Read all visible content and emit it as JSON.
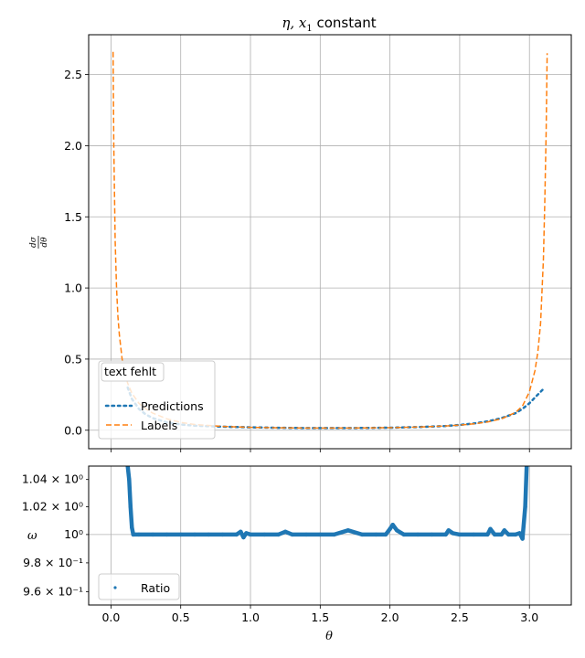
{
  "chart_data": [
    {
      "type": "line",
      "title": "η, x₁ constant",
      "xlabel": "",
      "ylabel": "dσ/dθ",
      "xlim": [
        -0.16,
        3.3
      ],
      "ylim": [
        -0.13,
        2.78
      ],
      "xticks": [
        0.0,
        0.5,
        1.0,
        1.5,
        2.0,
        2.5,
        3.0
      ],
      "yticks": [
        0.0,
        0.5,
        1.0,
        1.5,
        2.0,
        2.5
      ],
      "ytick_labels": [
        "0.0",
        "0.5",
        "1.0",
        "1.5",
        "2.0",
        "2.5"
      ],
      "grid": true,
      "legend": {
        "title": "text fehlt",
        "placement": "lower-left"
      },
      "series": [
        {
          "name": "Predictions",
          "style": "dotted",
          "color": "#1f77b4",
          "x": [
            0.12,
            0.15,
            0.2,
            0.25,
            0.3,
            0.4,
            0.5,
            0.6,
            0.8,
            1.0,
            1.2,
            1.4,
            1.6,
            1.8,
            2.0,
            2.2,
            2.4,
            2.5,
            2.6,
            2.7,
            2.8,
            2.9,
            2.95,
            3.0,
            3.05,
            3.1
          ],
          "y": [
            0.3,
            0.22,
            0.15,
            0.11,
            0.085,
            0.055,
            0.04,
            0.032,
            0.025,
            0.02,
            0.017,
            0.015,
            0.015,
            0.016,
            0.018,
            0.022,
            0.03,
            0.037,
            0.047,
            0.062,
            0.085,
            0.12,
            0.15,
            0.19,
            0.24,
            0.29
          ]
        },
        {
          "name": "Labels",
          "style": "dashed",
          "color": "#ff7f0e",
          "x": [
            0.015,
            0.02,
            0.03,
            0.04,
            0.05,
            0.06,
            0.08,
            0.1,
            0.12,
            0.15,
            0.2,
            0.25,
            0.3,
            0.4,
            0.5,
            0.6,
            0.8,
            1.0,
            1.2,
            1.4,
            1.6,
            1.8,
            2.0,
            2.2,
            2.4,
            2.5,
            2.6,
            2.7,
            2.8,
            2.9,
            2.95,
            3.0,
            3.04,
            3.06,
            3.08,
            3.1,
            3.11,
            3.12,
            3.127
          ],
          "y": [
            2.66,
            2.0,
            1.33,
            1.0,
            0.8,
            0.67,
            0.5,
            0.4,
            0.33,
            0.26,
            0.19,
            0.15,
            0.12,
            0.08,
            0.055,
            0.04,
            0.027,
            0.02,
            0.017,
            0.015,
            0.015,
            0.016,
            0.018,
            0.022,
            0.03,
            0.036,
            0.045,
            0.058,
            0.08,
            0.125,
            0.17,
            0.27,
            0.42,
            0.55,
            0.75,
            1.2,
            1.6,
            2.1,
            2.65
          ]
        }
      ]
    },
    {
      "type": "scatter",
      "xlabel": "θ",
      "ylabel": "ω",
      "xlim": [
        -0.16,
        3.3
      ],
      "ylim": [
        0.951,
        1.05
      ],
      "yscale": "log",
      "xticks": [
        0.0,
        0.5,
        1.0,
        1.5,
        2.0,
        2.5,
        3.0
      ],
      "yticks": [
        0.96,
        0.98,
        1.0,
        1.02,
        1.04
      ],
      "ytick_labels": [
        "9.6 × 10⁻¹",
        "9.8 × 10⁻¹",
        "10⁰",
        "1.02 × 10⁰",
        "1.04 × 10⁰"
      ],
      "grid": true,
      "legend": {
        "placement": "lower-left"
      },
      "series": [
        {
          "name": "Ratio",
          "color": "#1f77b4",
          "x": [
            0.12,
            0.13,
            0.14,
            0.15,
            0.16,
            0.2,
            0.3,
            0.4,
            0.5,
            0.6,
            0.7,
            0.8,
            0.9,
            0.93,
            0.95,
            0.97,
            1.0,
            1.1,
            1.2,
            1.25,
            1.3,
            1.4,
            1.5,
            1.6,
            1.7,
            1.8,
            1.9,
            1.97,
            2.0,
            2.02,
            2.05,
            2.1,
            2.2,
            2.3,
            2.4,
            2.42,
            2.45,
            2.5,
            2.6,
            2.7,
            2.72,
            2.75,
            2.8,
            2.82,
            2.85,
            2.9,
            2.93,
            2.95,
            2.97,
            2.98
          ],
          "y": [
            1.05,
            1.04,
            1.02,
            1.005,
            1.0,
            1.0,
            1.0,
            1.0,
            1.0,
            1.0,
            1.0,
            1.0,
            1.0,
            1.002,
            0.998,
            1.001,
            1.0,
            1.0,
            1.0,
            1.002,
            1.0,
            1.0,
            1.0,
            1.0,
            1.003,
            1.0,
            1.0,
            1.0,
            1.004,
            1.007,
            1.003,
            1.0,
            1.0,
            1.0,
            1.0,
            1.003,
            1.001,
            1.0,
            1.0,
            1.0,
            1.004,
            1.0,
            1.0,
            1.003,
            1.0,
            1.0,
            1.001,
            0.997,
            1.02,
            1.05
          ]
        }
      ]
    }
  ]
}
